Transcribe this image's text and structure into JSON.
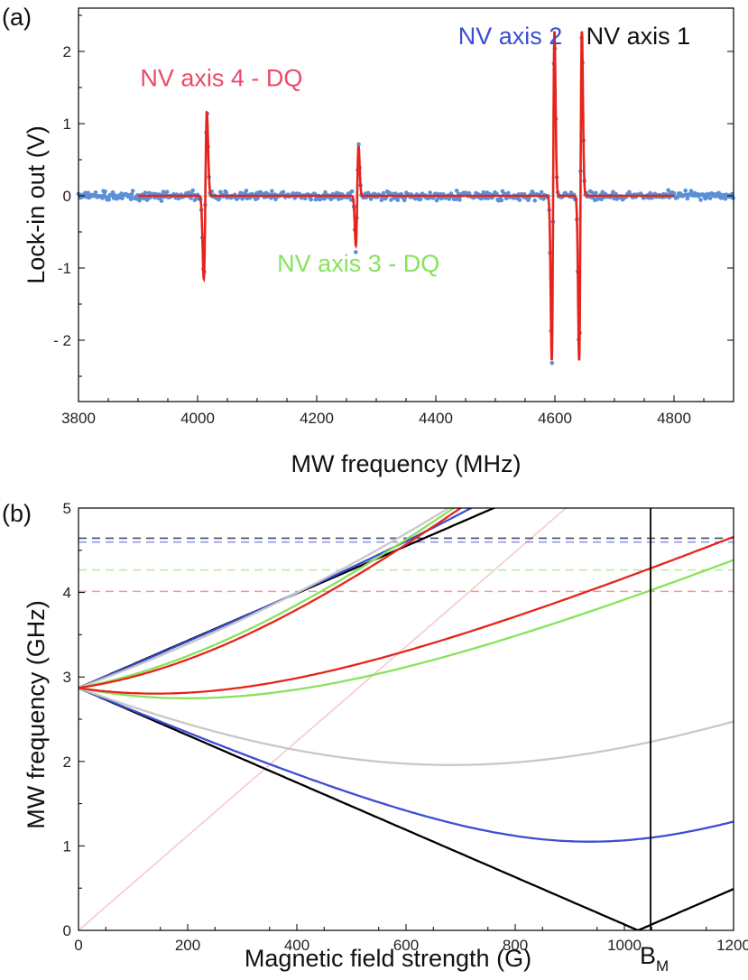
{
  "chart_data": [
    {
      "panel_label": "(a)",
      "type": "scatter",
      "xlabel": "MW frequency (MHz)",
      "ylabel": "Lock-in out (V)",
      "xlim": [
        3800,
        4900
      ],
      "ylim": [
        -2.85,
        2.6
      ],
      "xticks": [
        3800,
        4000,
        4200,
        4400,
        4600,
        4800
      ],
      "yticks": [
        2,
        1,
        0,
        -1,
        -2
      ],
      "ytick_labels": [
        "2",
        "1",
        "0",
        "-1",
        "- 2"
      ],
      "grid": false,
      "colors": {
        "data": "#5b8fd6",
        "fit": "#e6241b",
        "zero_line": "#cccccc"
      },
      "fit_range": [
        3900,
        4800
      ],
      "resonances": [
        {
          "center": 4013,
          "amplitude": 1.15,
          "width": 2.6
        },
        {
          "center": 4268,
          "amplitude": 0.69,
          "width": 2.3
        },
        {
          "center": 4597,
          "amplitude": 2.28,
          "width": 2.3
        },
        {
          "center": 4643,
          "amplitude": 2.28,
          "width": 2.3
        }
      ],
      "noise_sd": 0.055,
      "annotations": [
        {
          "text": "NV axis 4 - DQ",
          "color": "#ec4a6a",
          "x": 4040,
          "y": 1.52
        },
        {
          "text": "NV axis 3 - DQ",
          "color": "#86e35b",
          "x": 4270,
          "y": -1.05
        },
        {
          "text": "NV axis 2",
          "color": "#3b4fd0",
          "x": 4525,
          "y": 2.1
        },
        {
          "text": "NV axis 1",
          "color": "#111111",
          "x": 4740,
          "y": 2.1
        }
      ]
    },
    {
      "panel_label": "(b)",
      "type": "line",
      "xlabel": "Magnetic field strength (G)",
      "ylabel": "MW frequency (GHz)",
      "xlim": [
        0,
        1200
      ],
      "ylim": [
        0,
        5
      ],
      "xticks": [
        0,
        200,
        400,
        600,
        800,
        1000,
        1200
      ],
      "yticks": [
        0,
        1,
        2,
        3,
        4,
        5
      ],
      "grid": false,
      "zero_field_splitting_ghz": 2.87,
      "gyromagnetic_ghz_per_g": 0.0028,
      "vertical_marker": {
        "x": 1048,
        "label": "B",
        "subscript": "M"
      },
      "horizontal_dashed": [
        {
          "y": 4.643,
          "color": "#4a4a66"
        },
        {
          "y": 4.597,
          "color": "#8c9ce6"
        },
        {
          "y": 4.268,
          "color": "#b9f09a"
        },
        {
          "y": 4.013,
          "color": "#f29a92"
        }
      ],
      "series": [
        {
          "cos2": 1.0,
          "color": "#000000",
          "branches": [
            "upper",
            "lower"
          ]
        },
        {
          "cos2": 0.93,
          "color": "#3b4fd0",
          "branches": [
            "upper",
            "lower"
          ]
        },
        {
          "cos2": 0.72,
          "color": "#c8c8c8",
          "branches": [
            "upper",
            "lower"
          ]
        },
        {
          "cos2": 0.2,
          "color": "#86e35b",
          "branches": [
            "upper",
            "lower"
          ]
        },
        {
          "cos2": 0.12,
          "color": "#e6241b",
          "branches": [
            "upper",
            "lower"
          ]
        }
      ],
      "faint_lines": [
        {
          "x": [
            0,
            1200
          ],
          "y": [
            0,
            6.72
          ],
          "color": "#f7c9c9"
        },
        {
          "x": [
            0,
            1025,
            1200
          ],
          "y": [
            2.87,
            0,
            0.49
          ],
          "color": "#f7c9c9"
        }
      ]
    }
  ]
}
